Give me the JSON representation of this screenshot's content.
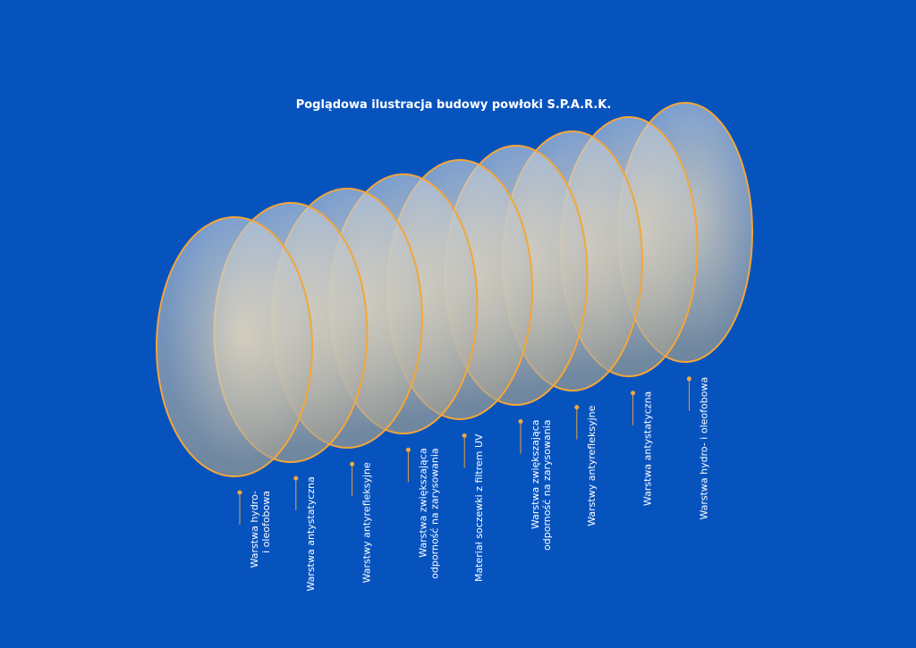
{
  "title": "Poglądowa ilustracja budowy powłoki S.P.A.R.K.",
  "layers": [
    {
      "lines": [
        "Warstwa hydro-",
        "i oleofobowa"
      ]
    },
    {
      "lines": [
        "Warstwa antystatyczna"
      ]
    },
    {
      "lines": [
        "Warstwy antyrefleksyjne"
      ]
    },
    {
      "lines": [
        "Warstwa zwiększająca",
        "odporność na zarysowania"
      ]
    },
    {
      "lines": [
        "Materiał soczewki z filtrem UV"
      ]
    },
    {
      "lines": [
        "Warstwa zwiększająca",
        "odporność na zarysowania"
      ]
    },
    {
      "lines": [
        "Warstwy antyrefleksyjne"
      ]
    },
    {
      "lines": [
        "Warstwa antystatyczna"
      ]
    },
    {
      "lines": [
        "Warstwa hydro- i oleofobowa"
      ]
    }
  ]
}
